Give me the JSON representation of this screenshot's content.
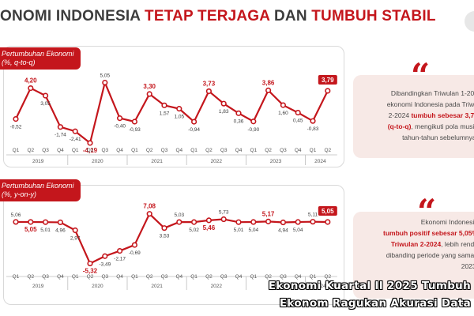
{
  "title": {
    "part1": "ONOMI INDONESIA ",
    "part2": "TETAP TERJAGA",
    "part3": " DAN ",
    "part4": "TUMBUH STABIL"
  },
  "colors": {
    "accent": "#c4161c",
    "line": "#c4161c",
    "text": "#3c3c3c",
    "card": "#f7e9e6"
  },
  "chart_data": [
    {
      "type": "line",
      "tag_line1": "Pertumbuhan Ekonomi",
      "tag_line2": "(%, q-to-q)",
      "quarters": [
        "Q1",
        "Q2",
        "Q3",
        "Q4",
        "Q1",
        "Q2",
        "Q3",
        "Q4",
        "Q1",
        "Q2",
        "Q3",
        "Q4",
        "Q1",
        "Q2",
        "Q3",
        "Q4",
        "Q1",
        "Q2",
        "Q3",
        "Q4",
        "Q1",
        "Q2"
      ],
      "years": [
        "2019",
        "2020",
        "2021",
        "2022",
        "2023",
        "2024"
      ],
      "values": [
        -0.52,
        4.2,
        3.05,
        -1.74,
        -2.41,
        -4.19,
        5.05,
        -0.4,
        -0.93,
        3.3,
        1.57,
        1.05,
        -0.94,
        3.73,
        1.83,
        0.36,
        -0.9,
        3.86,
        1.6,
        0.45,
        -0.83,
        3.79
      ],
      "labels": [
        "-0,52",
        "4,20",
        "3,05",
        "-1,74",
        "-2,41",
        "-4,19",
        "5,05",
        "-0,40",
        "-0,93",
        "3,30",
        "1,57",
        "1,05",
        "-0,94",
        "3,73",
        "1,83",
        "0,36",
        "-0,90",
        "3,86",
        "1,60",
        "0,45",
        "-0,83",
        "3,79"
      ],
      "bold": [
        false,
        true,
        false,
        false,
        false,
        true,
        false,
        false,
        false,
        true,
        false,
        false,
        false,
        true,
        false,
        false,
        false,
        true,
        false,
        false,
        false,
        true
      ],
      "ylim": [
        -4.8,
        5.6
      ]
    },
    {
      "type": "line",
      "tag_line1": "Pertumbuhan Ekonomi",
      "tag_line2": "(%, y-on-y)",
      "quarters": [
        "Q1",
        "Q2",
        "Q3",
        "Q4",
        "Q1",
        "Q2",
        "Q3",
        "Q4",
        "Q1",
        "Q2",
        "Q3",
        "Q4",
        "Q1",
        "Q2",
        "Q3",
        "Q4",
        "Q1",
        "Q2",
        "Q3",
        "Q4",
        "Q1",
        "Q2"
      ],
      "years": [
        "2019",
        "2020",
        "2021",
        "2022",
        "2023",
        "2024"
      ],
      "values": [
        5.06,
        5.05,
        5.01,
        4.96,
        2.97,
        -5.32,
        -3.49,
        -2.17,
        -0.69,
        7.08,
        3.53,
        5.03,
        5.02,
        5.46,
        5.73,
        5.01,
        5.04,
        5.17,
        4.94,
        5.04,
        5.11,
        5.05
      ],
      "labels": [
        "5,06",
        "5,05",
        "5,01",
        "4,96",
        "2,97",
        "-5,32",
        "-3,49",
        "-2,17",
        "-0,69",
        "7,08",
        "3,53",
        "5,03",
        "5,02",
        "5,46",
        "5,73",
        "5,01",
        "5,04",
        "5,17",
        "4,94",
        "5,04",
        "5,11",
        "5,05"
      ],
      "bold": [
        false,
        true,
        false,
        false,
        false,
        true,
        false,
        false,
        false,
        true,
        false,
        false,
        false,
        true,
        false,
        false,
        false,
        true,
        false,
        false,
        false,
        true
      ],
      "ylim": [
        -6.2,
        8.2
      ]
    }
  ],
  "card1": {
    "l1": "Dibandingkan Triwulan 1-202",
    "l2": "ekonomi Indonesia pada Triwu",
    "l3a": "2-2024 ",
    "l3b": "tumbuh sebesar 3,79",
    "l4a": "(q-to-q)",
    "l4b": ", mengikuti pola musin",
    "l5": "tahun-tahun sebelumnya."
  },
  "card2": {
    "l1": "Ekonomi Indonesia",
    "l2": "tumbuh positif sebesar 5,05%",
    "l3a": "Triwulan 2-2024",
    "l3b": ", lebih renda",
    "l4": "dibanding periode yang sama t",
    "l5": "2023."
  },
  "quote_glyph": "“",
  "watermark": {
    "line1": "Ekonomi Kuartal II 2025 Tumbuh",
    "line2": "Ekonom Ragukan Akurasi Data"
  }
}
